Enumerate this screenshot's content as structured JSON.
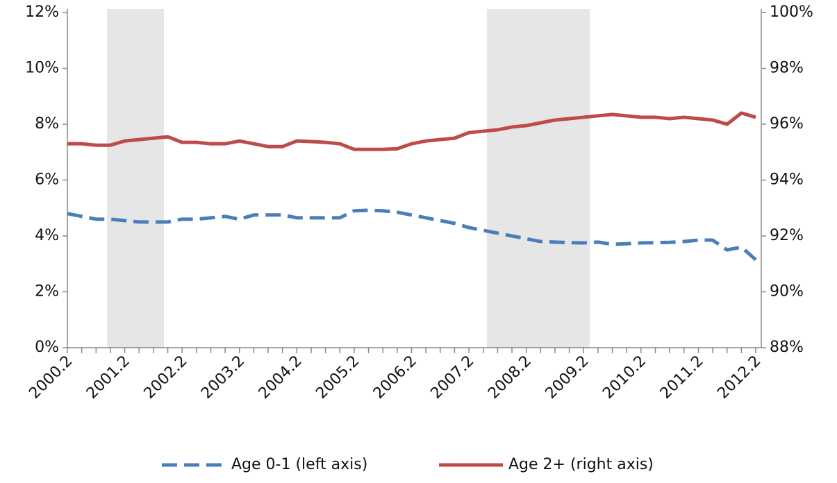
{
  "chart_data": {
    "type": "line",
    "categories": [
      "2000.2",
      null,
      null,
      null,
      "2001.2",
      null,
      null,
      null,
      "2002.2",
      null,
      null,
      null,
      "2003.2",
      null,
      null,
      null,
      "2004.2",
      null,
      null,
      null,
      "2005.2",
      null,
      null,
      null,
      "2006.2",
      null,
      null,
      null,
      "2007.2",
      null,
      null,
      null,
      "2008.2",
      null,
      null,
      null,
      "2009.2",
      null,
      null,
      null,
      "2010.2",
      null,
      null,
      null,
      "2011.2",
      null,
      null,
      null,
      "2012.2"
    ],
    "series": [
      {
        "name": "Age 0-1 (left axis)",
        "color": "#4a7ebb",
        "dashed": true,
        "values": [
          4.8,
          4.7,
          4.6,
          4.6,
          4.55,
          4.5,
          4.5,
          4.5,
          4.6,
          4.6,
          4.65,
          4.7,
          4.6,
          4.75,
          4.75,
          4.75,
          4.65,
          4.65,
          4.65,
          4.65,
          4.9,
          4.92,
          4.9,
          4.85,
          4.75,
          4.65,
          4.55,
          4.45,
          4.3,
          4.2,
          4.1,
          4.0,
          3.9,
          3.8,
          3.78,
          3.76,
          3.75,
          3.78,
          3.7,
          3.72,
          3.75,
          3.76,
          3.77,
          3.8,
          3.85,
          3.85,
          3.5,
          3.6,
          3.15
        ]
      },
      {
        "name": "Age 2+ (right axis)",
        "color": "#be4b48",
        "axis": "y2",
        "dashed": false,
        "values": [
          95.3,
          95.3,
          95.25,
          95.25,
          95.4,
          95.45,
          95.5,
          95.55,
          95.35,
          95.35,
          95.3,
          95.3,
          95.4,
          95.3,
          95.2,
          95.2,
          95.4,
          95.38,
          95.35,
          95.3,
          95.1,
          95.1,
          95.1,
          95.12,
          95.3,
          95.4,
          95.45,
          95.5,
          95.7,
          95.75,
          95.8,
          95.9,
          95.95,
          96.05,
          96.15,
          96.2,
          96.25,
          96.3,
          96.35,
          96.3,
          96.25,
          96.25,
          96.2,
          96.25,
          96.2,
          96.15,
          96.0,
          96.4,
          96.25
        ]
      }
    ],
    "ylim": [
      0,
      12
    ],
    "yticks": [
      {
        "value": 0,
        "label": "0%"
      },
      {
        "value": 2,
        "label": "2%"
      },
      {
        "value": 4,
        "label": "4%"
      },
      {
        "value": 6,
        "label": "6%"
      },
      {
        "value": 8,
        "label": "8%"
      },
      {
        "value": 10,
        "label": "10%"
      },
      {
        "value": 12,
        "label": "12%"
      }
    ],
    "y2lim": [
      88,
      100
    ],
    "y2ticks": [
      {
        "value": 88,
        "label": "88%"
      },
      {
        "value": 90,
        "label": "90%"
      },
      {
        "value": 92,
        "label": "92%"
      },
      {
        "value": 94,
        "label": "94%"
      },
      {
        "value": 96,
        "label": "96%"
      },
      {
        "value": 98,
        "label": "98%"
      },
      {
        "value": 100,
        "label": "100%"
      }
    ],
    "legend": "bottom"
  }
}
